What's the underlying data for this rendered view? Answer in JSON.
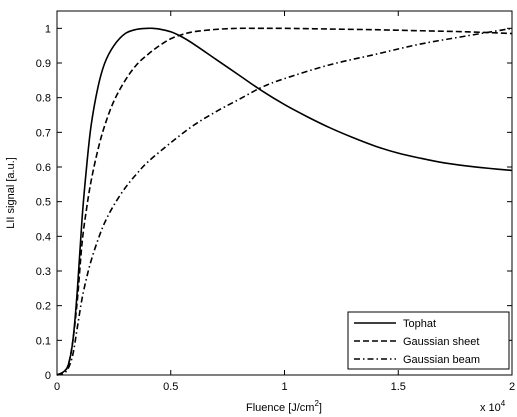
{
  "chart_data": {
    "type": "line",
    "xlabel_base": "Fluence [J/cm",
    "xlabel_sup": "2",
    "xlabel_end": "]",
    "ylabel": "LII signal [a.u.]",
    "x_multiplier_base": "x 10",
    "x_multiplier_exp": "4",
    "xlim": [
      0,
      20000
    ],
    "ylim": [
      0,
      1.05
    ],
    "xticks": [
      0,
      5000,
      10000,
      15000,
      20000
    ],
    "xtick_labels": [
      "0",
      "0.5",
      "1",
      "1.5",
      "2"
    ],
    "yticks": [
      0,
      0.1,
      0.2,
      0.3,
      0.4,
      0.5,
      0.6,
      0.7,
      0.8,
      0.9,
      1
    ],
    "ytick_labels": [
      "0",
      "0.1",
      "0.2",
      "0.3",
      "0.4",
      "0.5",
      "0.6",
      "0.7",
      "0.8",
      "0.9",
      "1"
    ],
    "grid": false,
    "legend_position": "bottom-right",
    "series": [
      {
        "name": "Tophat",
        "style": "solid",
        "x": [
          0,
          300,
          500,
          700,
          900,
          1100,
          1300,
          1500,
          1800,
          2100,
          2500,
          3000,
          3500,
          4000,
          4200,
          4500,
          5000,
          5500,
          6000,
          7000,
          8000,
          9000,
          10000,
          11000,
          12000,
          13000,
          14000,
          15000,
          16000,
          17000,
          18000,
          19000,
          20000
        ],
        "y": [
          0,
          0.01,
          0.03,
          0.1,
          0.25,
          0.45,
          0.6,
          0.72,
          0.83,
          0.9,
          0.95,
          0.985,
          0.997,
          1.0,
          1.0,
          0.998,
          0.99,
          0.975,
          0.955,
          0.91,
          0.865,
          0.82,
          0.78,
          0.745,
          0.713,
          0.685,
          0.66,
          0.64,
          0.625,
          0.612,
          0.603,
          0.596,
          0.59
        ]
      },
      {
        "name": "Gaussian sheet",
        "style": "dashed",
        "x": [
          0,
          300,
          500,
          700,
          900,
          1100,
          1300,
          1500,
          1800,
          2100,
          2500,
          3000,
          3500,
          4000,
          4500,
          5000,
          5500,
          6000,
          7000,
          8000,
          9000,
          10000,
          12000,
          14000,
          16000,
          18000,
          20000
        ],
        "y": [
          0,
          0.01,
          0.03,
          0.1,
          0.22,
          0.38,
          0.48,
          0.56,
          0.65,
          0.72,
          0.79,
          0.85,
          0.895,
          0.925,
          0.95,
          0.97,
          0.982,
          0.99,
          0.997,
          1.0,
          1.0,
          1.0,
          0.998,
          0.996,
          0.993,
          0.99,
          0.985
        ]
      },
      {
        "name": "Gaussian beam",
        "style": "dashdot",
        "x": [
          0,
          300,
          500,
          700,
          900,
          1100,
          1300,
          1500,
          1800,
          2100,
          2500,
          3000,
          3500,
          4000,
          5000,
          6000,
          7000,
          8000,
          9000,
          10000,
          12000,
          14000,
          16000,
          18000,
          20000
        ],
        "y": [
          0,
          0.005,
          0.02,
          0.06,
          0.14,
          0.22,
          0.28,
          0.33,
          0.39,
          0.44,
          0.49,
          0.54,
          0.58,
          0.615,
          0.67,
          0.72,
          0.76,
          0.795,
          0.83,
          0.855,
          0.895,
          0.925,
          0.955,
          0.978,
          1.0
        ]
      }
    ]
  }
}
